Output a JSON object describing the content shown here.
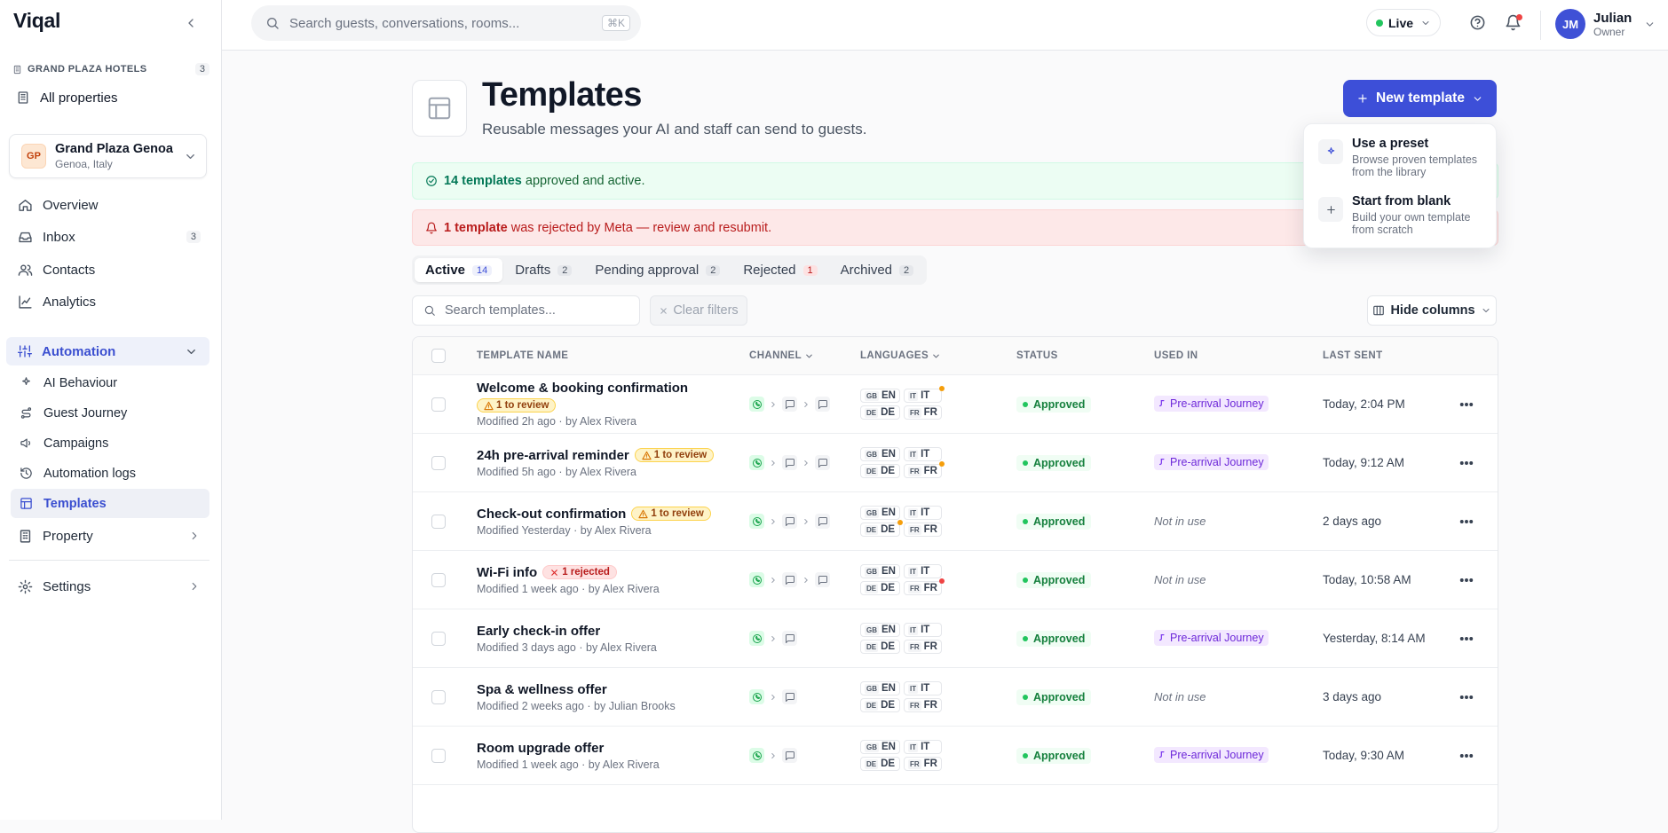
{
  "sidebar": {
    "brand": "Viqal",
    "org_label": "GRAND PLAZA HOTELS",
    "org_count": 3,
    "all_properties": "All properties",
    "property": {
      "initials": "GP",
      "name": "Grand Plaza Genoa",
      "location": "Genoa, Italy"
    },
    "nav": [
      {
        "label": "Overview"
      },
      {
        "label": "Inbox",
        "badge": 3
      },
      {
        "label": "Contacts"
      },
      {
        "label": "Analytics"
      }
    ],
    "automation": {
      "label": "Automation",
      "items": [
        "AI Behaviour",
        "Guest Journey",
        "Campaigns",
        "Automation logs",
        "Templates"
      ],
      "active": 4
    },
    "property_nav": "Property",
    "settings": "Settings"
  },
  "topbar": {
    "search_placeholder": "Search guests, conversations, rooms...",
    "shortcut": "⌘K",
    "status": "Live",
    "user": {
      "initials": "JM",
      "name": "Julian",
      "role": "Owner"
    }
  },
  "header": {
    "title": "Templates",
    "subtitle": "Reusable messages your AI and staff can send to guests.",
    "new_button": "New template"
  },
  "menu": [
    {
      "title": "Use a preset",
      "desc": "Browse proven templates from the library"
    },
    {
      "title": "Start from blank",
      "desc": "Build your own template from scratch"
    }
  ],
  "alerts": {
    "success": {
      "strong": "14 templates",
      "text": "approved and active."
    },
    "error": {
      "strong": "1 template",
      "text": "was rejected by Meta — review and resubmit."
    }
  },
  "tabs": {
    "active": 0,
    "items": [
      {
        "label": "Active",
        "count": 14
      },
      {
        "label": "Drafts",
        "count": 2
      },
      {
        "label": "Pending approval",
        "count": 2
      },
      {
        "label": "Rejected",
        "count": 1,
        "tone": "danger"
      },
      {
        "label": "Archived",
        "count": 2
      }
    ]
  },
  "filters": {
    "search_placeholder": "Search templates...",
    "clear": "Clear filters",
    "hide_columns": "Hide columns"
  },
  "table": {
    "columns": [
      "TEMPLATE NAME",
      "CHANNEL",
      "LANGUAGES",
      "STATUS",
      "USED IN",
      "LAST SENT"
    ],
    "rows": [
      {
        "name": "Welcome & booking confirmation",
        "flag": {
          "text": "1 to review",
          "kind": "warning"
        },
        "meta": "Modified 2h ago · by Alex Rivera",
        "channels": [
          "whatsapp",
          "message",
          "message"
        ],
        "languages": [
          {
            "flag": "GB",
            "code": "EN"
          },
          {
            "flag": "IT",
            "code": "IT",
            "dot": "#f59e0b"
          },
          {
            "flag": "DE",
            "code": "DE"
          },
          {
            "flag": "FR",
            "code": "FR"
          }
        ],
        "status": "Approved",
        "used_in": "Pre-arrival Journey",
        "in_use": true,
        "last_sent": "Today, 2:04 PM"
      },
      {
        "name": "24h pre-arrival reminder",
        "flag": {
          "text": "1 to review",
          "kind": "warning"
        },
        "meta": "Modified 5h ago · by Alex Rivera",
        "channels": [
          "whatsapp",
          "message",
          "message"
        ],
        "languages": [
          {
            "flag": "GB",
            "code": "EN"
          },
          {
            "flag": "IT",
            "code": "IT"
          },
          {
            "flag": "DE",
            "code": "DE"
          },
          {
            "flag": "FR",
            "code": "FR",
            "dot": "#f59e0b"
          }
        ],
        "status": "Approved",
        "used_in": "Pre-arrival Journey",
        "in_use": true,
        "last_sent": "Today, 9:12 AM"
      },
      {
        "name": "Check-out confirmation",
        "flag": {
          "text": "1 to review",
          "kind": "warning"
        },
        "meta": "Modified Yesterday · by Alex Rivera",
        "channels": [
          "whatsapp",
          "message",
          "message"
        ],
        "languages": [
          {
            "flag": "GB",
            "code": "EN"
          },
          {
            "flag": "IT",
            "code": "IT"
          },
          {
            "flag": "DE",
            "code": "DE",
            "dot": "#f59e0b"
          },
          {
            "flag": "FR",
            "code": "FR"
          }
        ],
        "status": "Approved",
        "used_in": "Not in use",
        "in_use": false,
        "last_sent": "2 days ago"
      },
      {
        "name": "Wi-Fi info",
        "flag": {
          "text": "1 rejected",
          "kind": "danger"
        },
        "meta": "Modified 1 week ago · by Alex Rivera",
        "channels": [
          "whatsapp",
          "message",
          "message"
        ],
        "languages": [
          {
            "flag": "GB",
            "code": "EN"
          },
          {
            "flag": "IT",
            "code": "IT"
          },
          {
            "flag": "DE",
            "code": "DE"
          },
          {
            "flag": "FR",
            "code": "FR",
            "dot": "#ef4444"
          }
        ],
        "status": "Approved",
        "used_in": "Not in use",
        "in_use": false,
        "last_sent": "Today, 10:58 AM"
      },
      {
        "name": "Early check-in offer",
        "meta": "Modified 3 days ago · by Alex Rivera",
        "channels": [
          "whatsapp",
          "message"
        ],
        "languages": [
          {
            "flag": "GB",
            "code": "EN"
          },
          {
            "flag": "IT",
            "code": "IT"
          },
          {
            "flag": "DE",
            "code": "DE"
          },
          {
            "flag": "FR",
            "code": "FR"
          }
        ],
        "status": "Approved",
        "used_in": "Pre-arrival Journey",
        "in_use": true,
        "last_sent": "Yesterday, 8:14 AM"
      },
      {
        "name": "Spa & wellness offer",
        "meta": "Modified 2 weeks ago · by Julian Brooks",
        "channels": [
          "whatsapp",
          "message"
        ],
        "languages": [
          {
            "flag": "GB",
            "code": "EN"
          },
          {
            "flag": "IT",
            "code": "IT"
          },
          {
            "flag": "DE",
            "code": "DE"
          },
          {
            "flag": "FR",
            "code": "FR"
          }
        ],
        "status": "Approved",
        "used_in": "Not in use",
        "in_use": false,
        "last_sent": "3 days ago"
      },
      {
        "name": "Room upgrade offer",
        "meta": "Modified 1 week ago · by Alex Rivera",
        "channels": [
          "whatsapp",
          "message"
        ],
        "languages": [
          {
            "flag": "GB",
            "code": "EN"
          },
          {
            "flag": "IT",
            "code": "IT"
          },
          {
            "flag": "DE",
            "code": "DE"
          },
          {
            "flag": "FR",
            "code": "FR"
          }
        ],
        "status": "Approved",
        "used_in": "Pre-arrival Journey",
        "in_use": true,
        "last_sent": "Today, 9:30 AM"
      }
    ]
  }
}
